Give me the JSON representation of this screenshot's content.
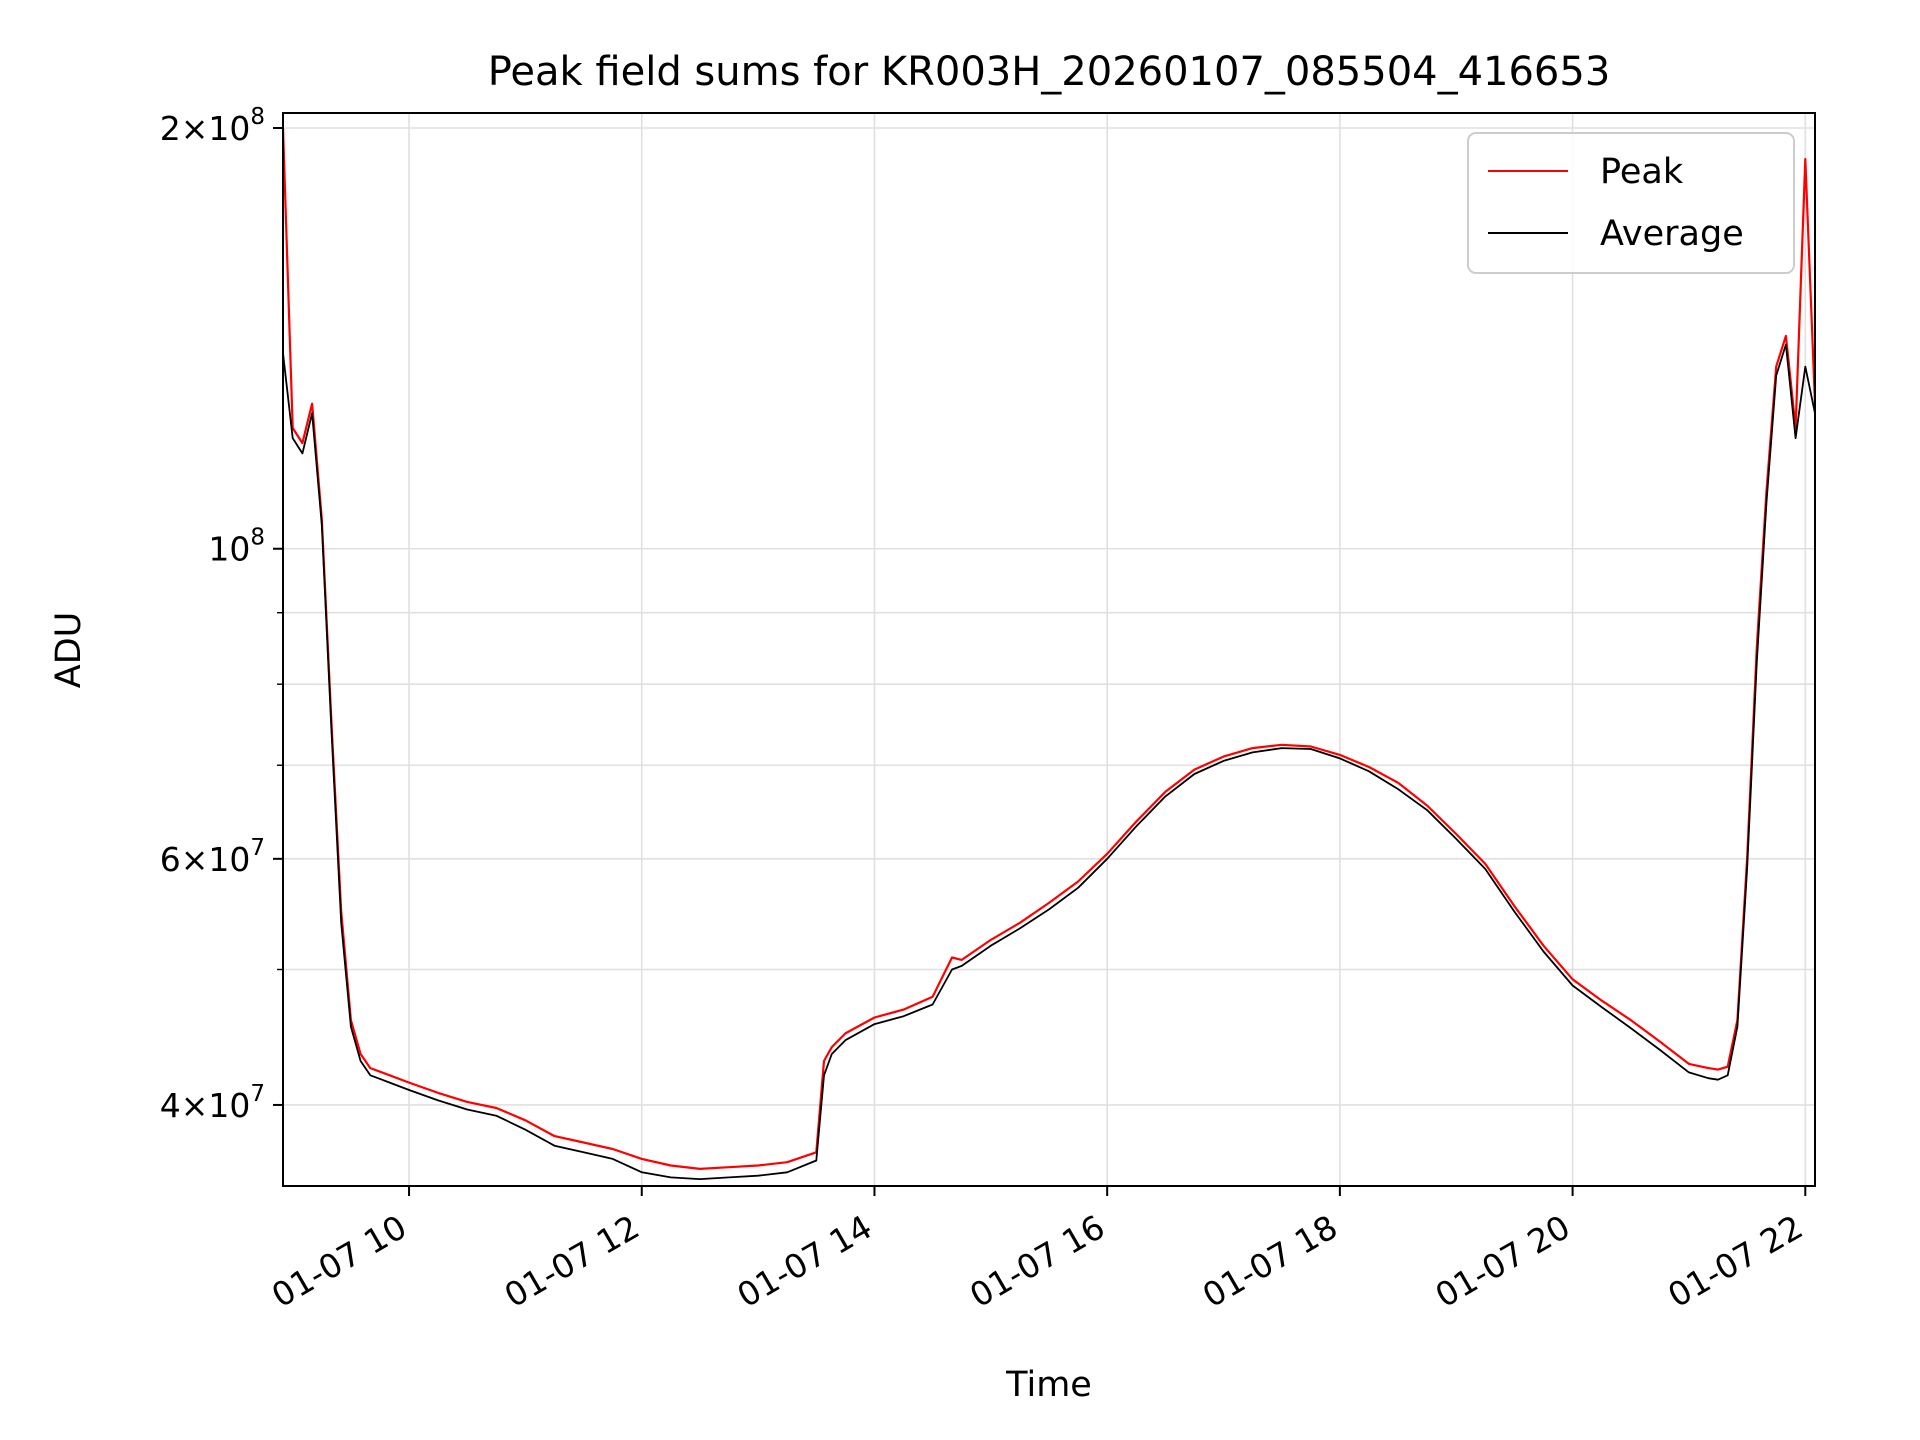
{
  "chart_data": {
    "type": "line",
    "title": "Peak field sums for KR003H_20260107_085504_416653",
    "xlabel": "Time",
    "ylabel": "ADU",
    "yscale": "log",
    "xlim": [
      "2026-01-07 08:55",
      "2026-01-07 22:05"
    ],
    "ylim": [
      35000000,
      205000000
    ],
    "grid": true,
    "legend_position": "top-right",
    "x_ticks": [
      "01-07 10",
      "01-07 12",
      "01-07 14",
      "01-07 16",
      "01-07 18",
      "01-07 20",
      "01-07 22"
    ],
    "y_ticks": [
      {
        "value": 40000000,
        "coef": "4",
        "exp": "7"
      },
      {
        "value": 60000000,
        "coef": "6",
        "exp": "7"
      },
      {
        "value": 100000000,
        "coef": "",
        "exp": "8"
      },
      {
        "value": 200000000,
        "coef": "2",
        "exp": "8"
      }
    ],
    "x": [
      "08:55",
      "09:00",
      "09:05",
      "09:10",
      "09:15",
      "09:20",
      "09:25",
      "09:30",
      "09:35",
      "09:40",
      "09:50",
      "10:00",
      "10:15",
      "10:30",
      "10:45",
      "11:00",
      "11:15",
      "11:30",
      "11:45",
      "12:00",
      "12:15",
      "12:30",
      "12:45",
      "13:00",
      "13:15",
      "13:30",
      "13:34",
      "13:38",
      "13:45",
      "14:00",
      "14:15",
      "14:30",
      "14:40",
      "14:45",
      "15:00",
      "15:15",
      "15:30",
      "15:45",
      "16:00",
      "16:15",
      "16:30",
      "16:45",
      "17:00",
      "17:15",
      "17:30",
      "17:45",
      "18:00",
      "18:15",
      "18:30",
      "18:45",
      "19:00",
      "19:15",
      "19:30",
      "19:45",
      "20:00",
      "20:15",
      "20:30",
      "20:45",
      "21:00",
      "21:10",
      "21:15",
      "21:20",
      "21:25",
      "21:30",
      "21:35",
      "21:40",
      "21:45",
      "21:50",
      "21:55",
      "22:00",
      "22:05"
    ],
    "series": [
      {
        "name": "Peak",
        "color": "#ff0000",
        "values": [
          200000000,
          122000000,
          119000000,
          127000000,
          105000000,
          75000000,
          55000000,
          46000000,
          43500000,
          42500000,
          42000000,
          41500000,
          40800000,
          40200000,
          39800000,
          39000000,
          38000000,
          37600000,
          37200000,
          36600000,
          36200000,
          36000000,
          36100000,
          36200000,
          36400000,
          37000000,
          43000000,
          44000000,
          45000000,
          46200000,
          46800000,
          47800000,
          51000000,
          50800000,
          52500000,
          54000000,
          55800000,
          57800000,
          60500000,
          63800000,
          67000000,
          69500000,
          71000000,
          72000000,
          72400000,
          72200000,
          71200000,
          69800000,
          68000000,
          65500000,
          62500000,
          59500000,
          55500000,
          52000000,
          49200000,
          47500000,
          46000000,
          44400000,
          42800000,
          42500000,
          42400000,
          42600000,
          46000000,
          60000000,
          85000000,
          110000000,
          135000000,
          142000000,
          122000000,
          190000000,
          127000000
        ]
      },
      {
        "name": "Average",
        "color": "#000000",
        "values": [
          138000000,
          120000000,
          117000000,
          125000000,
          104000000,
          74000000,
          54000000,
          45500000,
          43000000,
          42000000,
          41500000,
          41000000,
          40300000,
          39700000,
          39300000,
          38400000,
          37400000,
          37000000,
          36600000,
          35800000,
          35500000,
          35400000,
          35500000,
          35600000,
          35800000,
          36500000,
          42000000,
          43500000,
          44500000,
          45700000,
          46300000,
          47200000,
          50000000,
          50300000,
          52000000,
          53500000,
          55200000,
          57200000,
          60000000,
          63300000,
          66500000,
          69000000,
          70500000,
          71500000,
          72000000,
          71900000,
          70800000,
          69300000,
          67300000,
          65000000,
          62000000,
          59000000,
          55000000,
          51500000,
          48700000,
          47000000,
          45400000,
          43800000,
          42200000,
          41800000,
          41700000,
          42000000,
          45500000,
          59000000,
          83000000,
          108000000,
          133000000,
          140000000,
          120000000,
          135000000,
          125000000
        ]
      }
    ]
  }
}
